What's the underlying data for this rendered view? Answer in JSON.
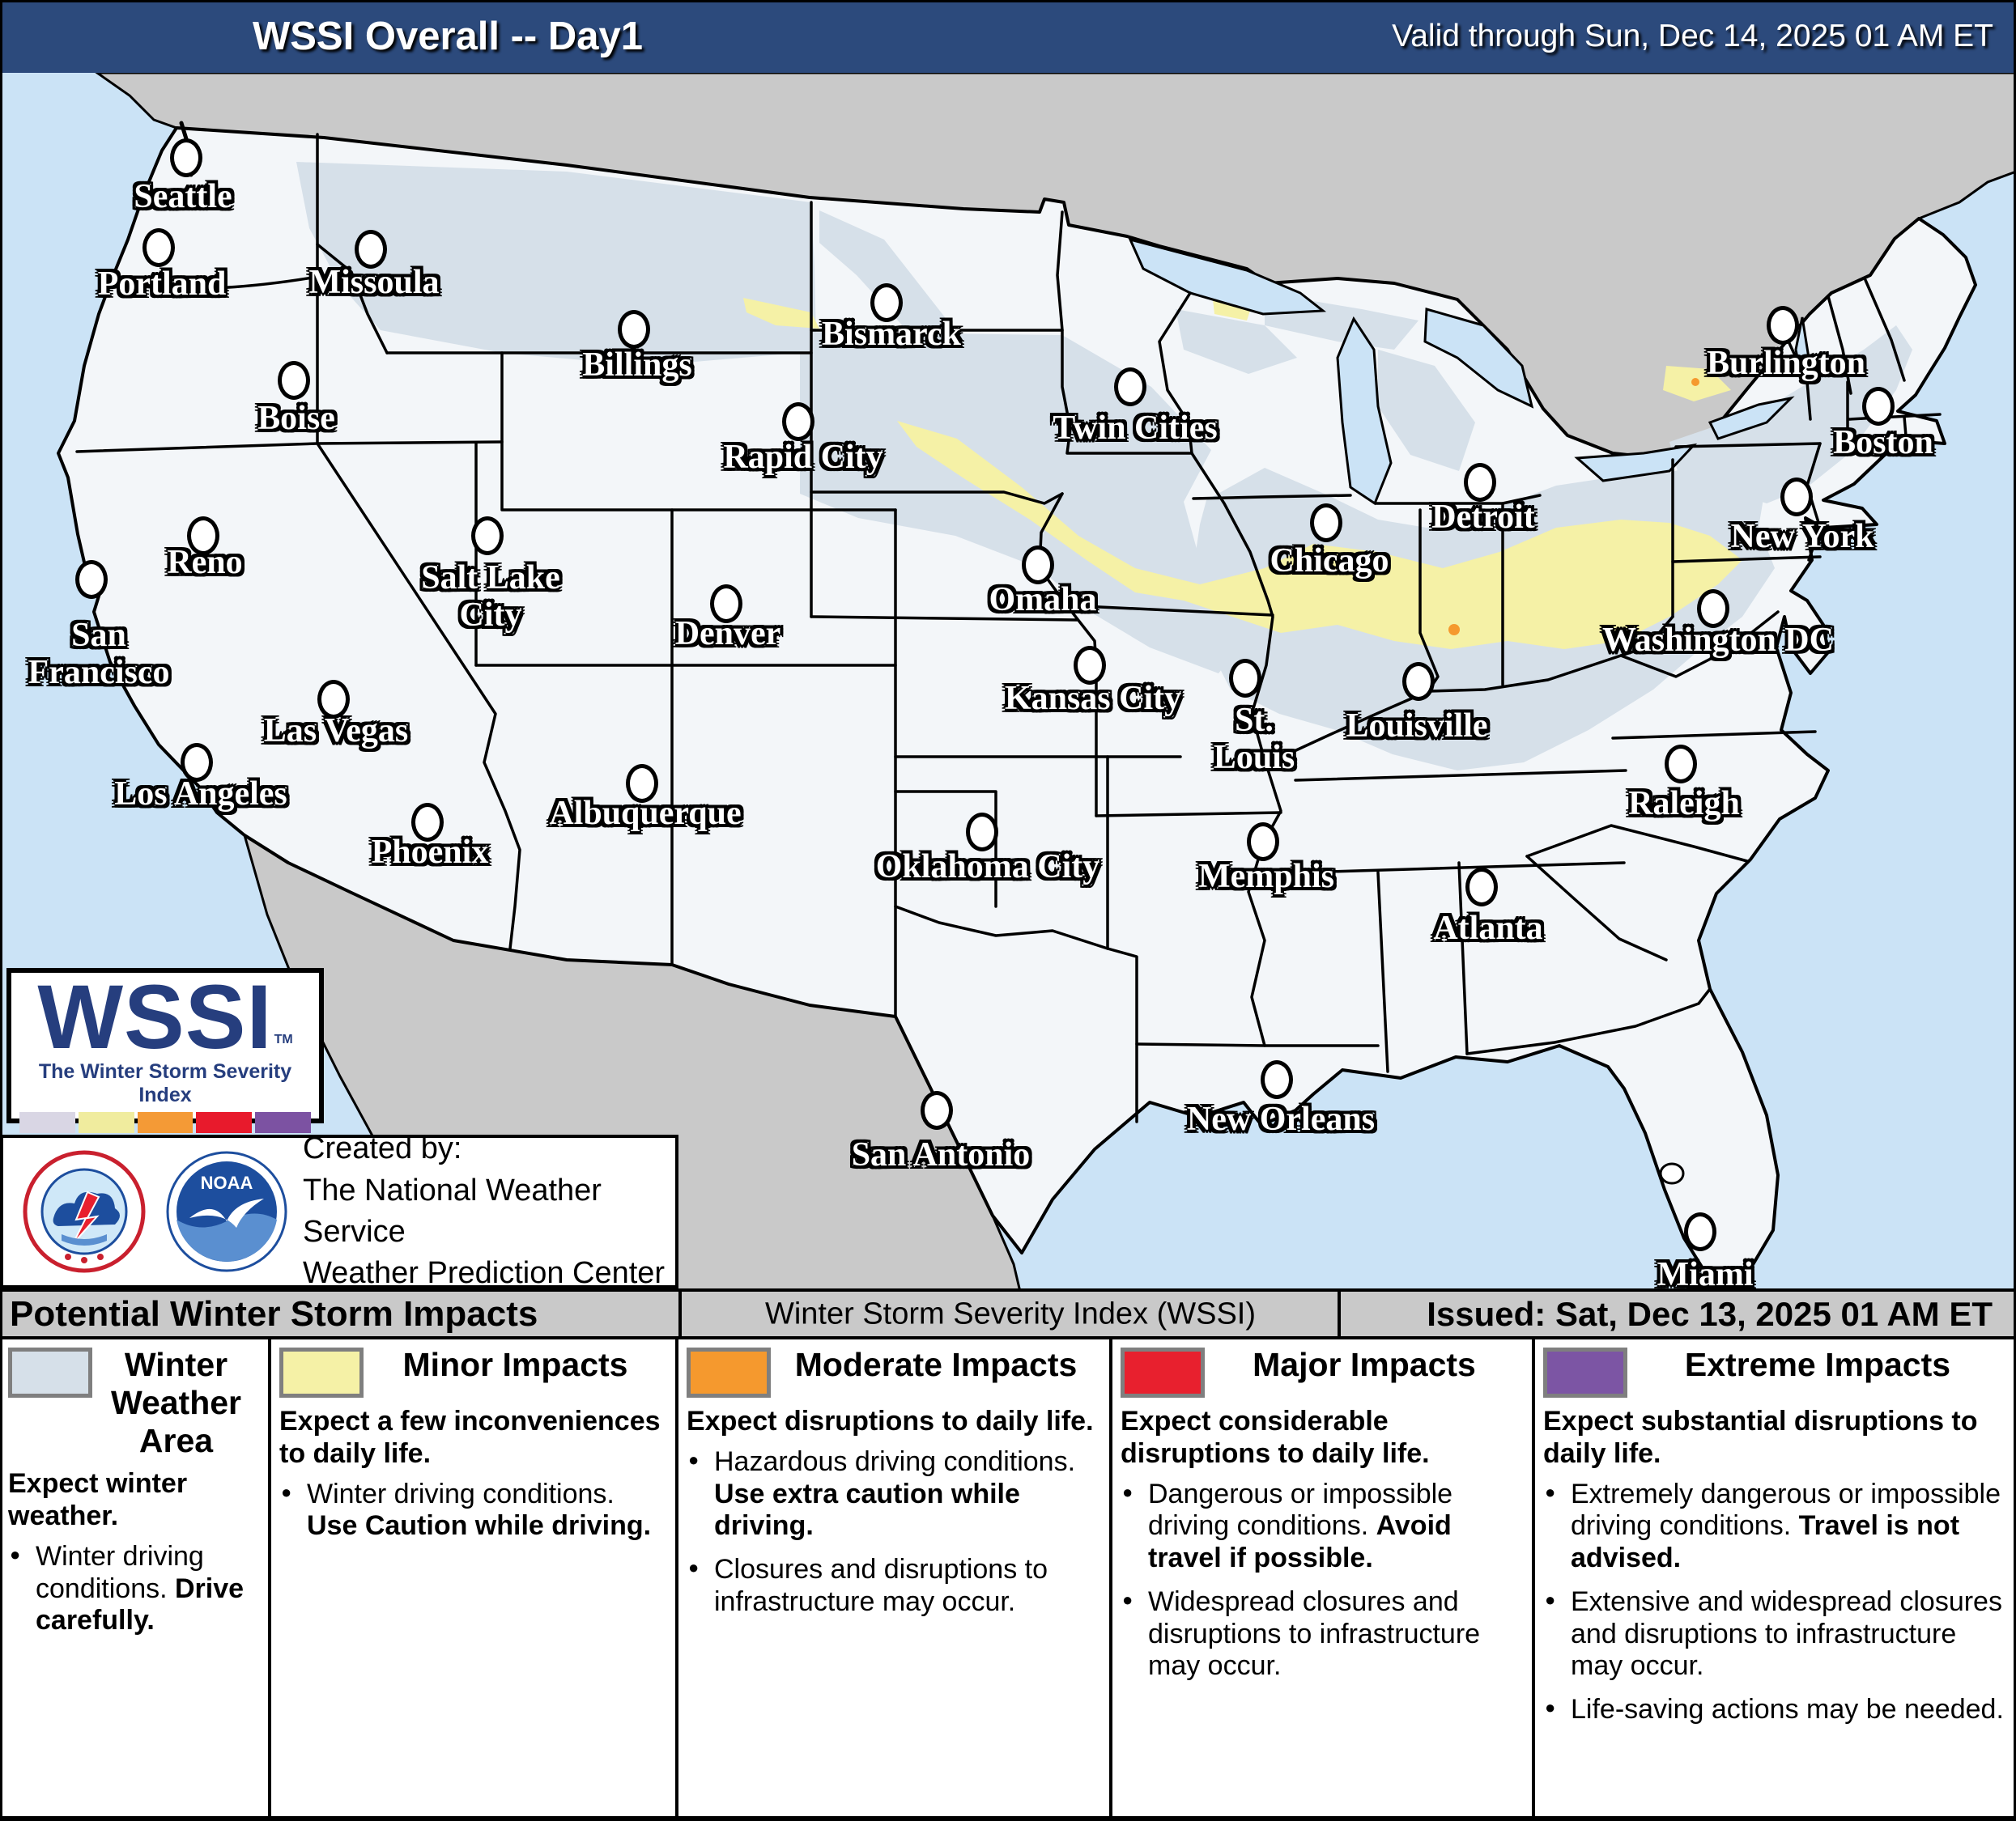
{
  "header": {
    "title": "WSSI Overall -- Day1",
    "valid": "Valid through Sun, Dec 14, 2025 01 AM ET"
  },
  "logo": {
    "acronym": "WSSI",
    "tm": "TM",
    "tagline": "The Winter Storm Severity Index",
    "strip": [
      "#D9D6E4",
      "#F0EC9E",
      "#F49A36",
      "#E81A2C",
      "#7C52A2"
    ]
  },
  "credit": {
    "line1": "Created by:",
    "line2": "The National Weather Service",
    "line3": "Weather Prediction Center",
    "noaa_text": "NOAA"
  },
  "subbar": {
    "left": "Potential Winter Storm Impacts",
    "center": "Winter Storm Severity Index (WSSI)",
    "right": "Issued: Sat, Dec 13, 2025 01 AM ET"
  },
  "colors": {
    "navy": "#2C4A7C",
    "water": "#CBE3F6",
    "neighbor": "#C9C9C9",
    "usland": "#F3F6F9",
    "winter": "#D6E0E9",
    "minor": "#F5F1A6",
    "moderate": "#F5992E",
    "major": "#E8202E",
    "extreme": "#7C55A4",
    "graybar": "#C9C9C9",
    "lognavy": "#263E7E",
    "swatchborder": "#7F7F7F"
  },
  "icons": {
    "nws": "nws-circular-seal",
    "noaa": "noaa-circular-seal"
  },
  "map": {
    "cities": [
      {
        "name": "Seattle",
        "dot": [
          230,
          195
        ],
        "label": [
          226,
          243
        ],
        "text": "Seattle"
      },
      {
        "name": "Portland",
        "dot": [
          196,
          306
        ],
        "label": [
          200,
          351
        ],
        "text": "Portland"
      },
      {
        "name": "Missoula",
        "dot": [
          458,
          308
        ],
        "label": [
          462,
          349
        ],
        "text": "Missoula"
      },
      {
        "name": "Boise",
        "dot": [
          363,
          470
        ],
        "label": [
          366,
          517
        ],
        "text": "Boise"
      },
      {
        "name": "Billings",
        "dot": [
          783,
          407
        ],
        "label": [
          787,
          451
        ],
        "text": "Billings"
      },
      {
        "name": "Bismarck",
        "dot": [
          1095,
          374
        ],
        "label": [
          1101,
          413
        ],
        "text": "Bismarck"
      },
      {
        "name": "Rapid City",
        "dot": [
          986,
          521
        ],
        "label": [
          992,
          565
        ],
        "text": "Rapid City"
      },
      {
        "name": "Twin Cities",
        "dot": [
          1396,
          478
        ],
        "label": [
          1402,
          529
        ],
        "text": "Twin Cities"
      },
      {
        "name": "Reno",
        "dot": [
          251,
          662
        ],
        "label": [
          253,
          695
        ],
        "text": "Reno"
      },
      {
        "name": "San Francisco",
        "dot": [
          113,
          716
        ],
        "label": [
          122,
          808
        ],
        "text": "San\nFrancisco"
      },
      {
        "name": "Salt Lake City",
        "dot": [
          602,
          662
        ],
        "label": [
          606,
          737
        ],
        "text": "Salt Lake\nCity"
      },
      {
        "name": "Denver",
        "dot": [
          897,
          746
        ],
        "label": [
          899,
          783
        ],
        "text": "Denver"
      },
      {
        "name": "Las Vegas",
        "dot": [
          412,
          864
        ],
        "label": [
          415,
          903
        ],
        "text": "Las Vegas"
      },
      {
        "name": "Los Angeles",
        "dot": [
          243,
          942
        ],
        "label": [
          248,
          981
        ],
        "text": "Los Angeles"
      },
      {
        "name": "Albuquerque",
        "dot": [
          793,
          968
        ],
        "label": [
          797,
          1005
        ],
        "text": "Albuquerque"
      },
      {
        "name": "Phoenix",
        "dot": [
          528,
          1016
        ],
        "label": [
          531,
          1053
        ],
        "text": "Phoenix"
      },
      {
        "name": "Omaha",
        "dot": [
          1282,
          698
        ],
        "label": [
          1288,
          741
        ],
        "text": "Omaha"
      },
      {
        "name": "Kansas City",
        "dot": [
          1346,
          822
        ],
        "label": [
          1350,
          863
        ],
        "text": "Kansas City"
      },
      {
        "name": "St. Louis",
        "dot": [
          1538,
          838
        ],
        "label": [
          1549,
          913
        ],
        "text": "St.\nLouis"
      },
      {
        "name": "Louisville",
        "dot": [
          1752,
          842
        ],
        "label": [
          1750,
          897
        ],
        "text": "Louisville"
      },
      {
        "name": "Oklahoma City",
        "dot": [
          1213,
          1028
        ],
        "label": [
          1220,
          1071
        ],
        "text": "Oklahoma City"
      },
      {
        "name": "Memphis",
        "dot": [
          1560,
          1040
        ],
        "label": [
          1564,
          1083
        ],
        "text": "Memphis"
      },
      {
        "name": "Chicago",
        "dot": [
          1638,
          646
        ],
        "label": [
          1642,
          693
        ],
        "text": "Chicago"
      },
      {
        "name": "Detroit",
        "dot": [
          1828,
          596
        ],
        "label": [
          1832,
          639
        ],
        "text": "Detroit"
      },
      {
        "name": "Atlanta",
        "dot": [
          1830,
          1096
        ],
        "label": [
          1838,
          1147
        ],
        "text": "Atlanta"
      },
      {
        "name": "Raleigh",
        "dot": [
          2076,
          944
        ],
        "label": [
          2080,
          993
        ],
        "text": "Raleigh"
      },
      {
        "name": "San Antonio",
        "dot": [
          1157,
          1372
        ],
        "label": [
          1162,
          1427
        ],
        "text": "San Antonio"
      },
      {
        "name": "New Orleans",
        "dot": [
          1577,
          1334
        ],
        "label": [
          1582,
          1383
        ],
        "text": "New Orleans"
      },
      {
        "name": "Miami",
        "dot": [
          2100,
          1522
        ],
        "label": [
          2106,
          1575
        ],
        "text": "Miami"
      },
      {
        "name": "Washington DC",
        "dot": [
          2116,
          752
        ],
        "label": [
          2122,
          791
        ],
        "text": "Washington DC"
      },
      {
        "name": "New York",
        "dot": [
          2219,
          614
        ],
        "label": [
          2226,
          663
        ],
        "text": "New York"
      },
      {
        "name": "Boston",
        "dot": [
          2320,
          502
        ],
        "label": [
          2326,
          547
        ],
        "text": "Boston"
      },
      {
        "name": "Burlington",
        "dot": [
          2202,
          402
        ],
        "label": [
          2206,
          449
        ],
        "text": "Burlington"
      }
    ]
  },
  "legend": {
    "columns": [
      {
        "title": "Winter Weather Area",
        "color_key": "winter",
        "intro": "Expect winter weather.",
        "bullets": [
          [
            {
              "t": "Winter driving conditions. "
            },
            {
              "t": "Drive carefully.",
              "b": true
            }
          ]
        ]
      },
      {
        "title": "Minor Impacts",
        "color_key": "minor",
        "intro": "Expect a few inconveniences to daily life.",
        "bullets": [
          [
            {
              "t": "Winter driving conditions. "
            },
            {
              "t": "Use Caution while driving.",
              "b": true
            }
          ]
        ]
      },
      {
        "title": "Moderate Impacts",
        "color_key": "moderate",
        "intro": "Expect disruptions to daily life.",
        "bullets": [
          [
            {
              "t": "Hazardous driving conditions. "
            },
            {
              "t": "Use extra caution while driving.",
              "b": true
            }
          ],
          [
            {
              "t": "Closures and disruptions to infrastructure may occur."
            }
          ]
        ]
      },
      {
        "title": "Major Impacts",
        "color_key": "major",
        "intro": "Expect considerable disruptions to daily life.",
        "bullets": [
          [
            {
              "t": "Dangerous or impossible driving conditions. "
            },
            {
              "t": "Avoid travel if possible.",
              "b": true
            }
          ],
          [
            {
              "t": "Widespread closures and disruptions to infrastructure may occur."
            }
          ]
        ]
      },
      {
        "title": "Extreme Impacts",
        "color_key": "extreme",
        "intro": "Expect substantial disruptions to daily life.",
        "bullets": [
          [
            {
              "t": "Extremely dangerous or impossible driving conditions. "
            },
            {
              "t": "Travel is not advised.",
              "b": true
            }
          ],
          [
            {
              "t": "Extensive and widespread closures and disruptions to infrastructure may occur."
            }
          ],
          [
            {
              "t": "Life-saving actions may be needed."
            }
          ]
        ]
      }
    ],
    "bounds": [
      0,
      331,
      834,
      1370,
      1892,
      2490
    ]
  }
}
